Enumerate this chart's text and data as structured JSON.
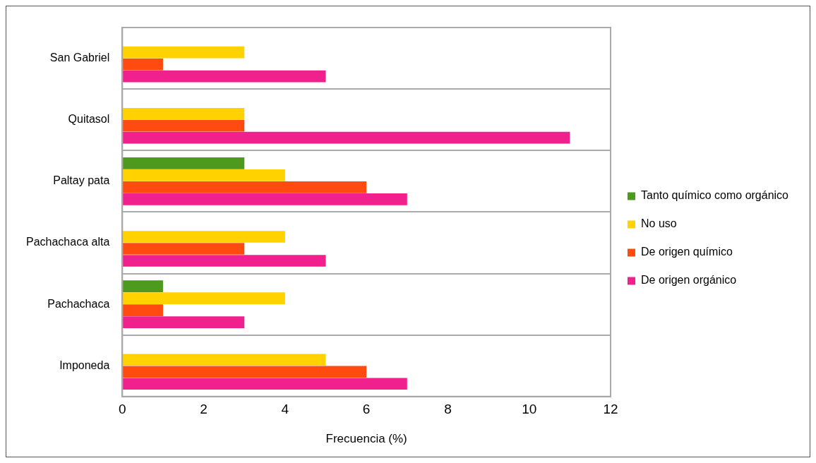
{
  "chart_data": {
    "type": "bar",
    "orientation": "horizontal",
    "xlabel": "Frecuencia (%)",
    "categories": [
      "San Gabriel",
      "Quitasol",
      "Paltay pata",
      "Pachachaca alta",
      "Pachachaca",
      "Imponeda"
    ],
    "series": [
      {
        "name": "Tanto químico como orgánico",
        "color": "#4e9a1e",
        "values": [
          0,
          0,
          3,
          0,
          1,
          0
        ]
      },
      {
        "name": "No uso",
        "color": "#ffd200",
        "values": [
          3,
          3,
          4,
          4,
          4,
          5
        ]
      },
      {
        "name": "De origen químico",
        "color": "#ff4a10",
        "values": [
          1,
          3,
          6,
          3,
          1,
          6
        ]
      },
      {
        "name": "De origen orgánico",
        "color": "#f0208c",
        "values": [
          5,
          11,
          7,
          5,
          3,
          7
        ]
      }
    ],
    "xlim": [
      0,
      12
    ],
    "xticks": [
      0,
      2,
      4,
      6,
      8,
      10,
      12
    ],
    "grid": "y",
    "legend": "right"
  }
}
